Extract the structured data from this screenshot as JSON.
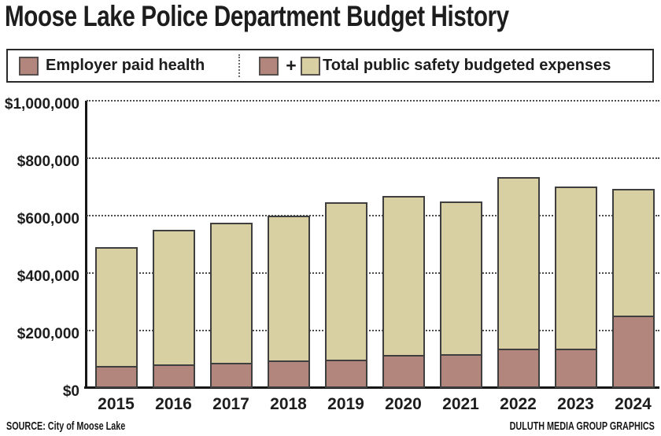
{
  "title": "Moose Lake Police Department Budget History",
  "legend": {
    "health_label": "Employer paid health",
    "plus_sign": "+",
    "total_label": "Total public safety budgeted expenses"
  },
  "footer": {
    "source": "SOURCE: City of Moose Lake",
    "credit": "DULUTH MEDIA GROUP GRAPHICS"
  },
  "colors": {
    "health_fill": "#b2867d",
    "total_fill": "#d8cfa2",
    "segment_border": "#3f3f3f",
    "grid": "#4c4c4c",
    "axis": "#161616"
  },
  "chart_data": {
    "type": "bar",
    "stacked": true,
    "title": "Moose Lake Police Department Budget History",
    "xlabel": "",
    "ylabel": "",
    "categories": [
      "2015",
      "2016",
      "2017",
      "2018",
      "2019",
      "2020",
      "2021",
      "2022",
      "2023",
      "2024"
    ],
    "series": [
      {
        "name": "Employer paid health",
        "color": "#b2867d",
        "values": [
          70000,
          77000,
          81000,
          90000,
          92000,
          110000,
          111000,
          132000,
          132000,
          247000
        ]
      },
      {
        "name": "Total public safety budgeted expenses",
        "color": "#d8cfa2",
        "values": [
          490000,
          551000,
          574000,
          601000,
          647000,
          669000,
          649000,
          733000,
          701000,
          693000
        ]
      }
    ],
    "series_note": "Second series is the full bar height (total); first series is drawn as the bottom segment of each bar.",
    "ylim": [
      0,
      1000000
    ],
    "yticks": [
      {
        "value": 0,
        "label": "$0"
      },
      {
        "value": 200000,
        "label": "$200,000"
      },
      {
        "value": 400000,
        "label": "$400,000"
      },
      {
        "value": 600000,
        "label": "$600,000"
      },
      {
        "value": 800000,
        "label": "$800,000"
      },
      {
        "value": 1000000,
        "label": "$1,000,000"
      }
    ],
    "grid": "horizontal dotted lines at each y tick",
    "legend_position": "top, boxed"
  }
}
